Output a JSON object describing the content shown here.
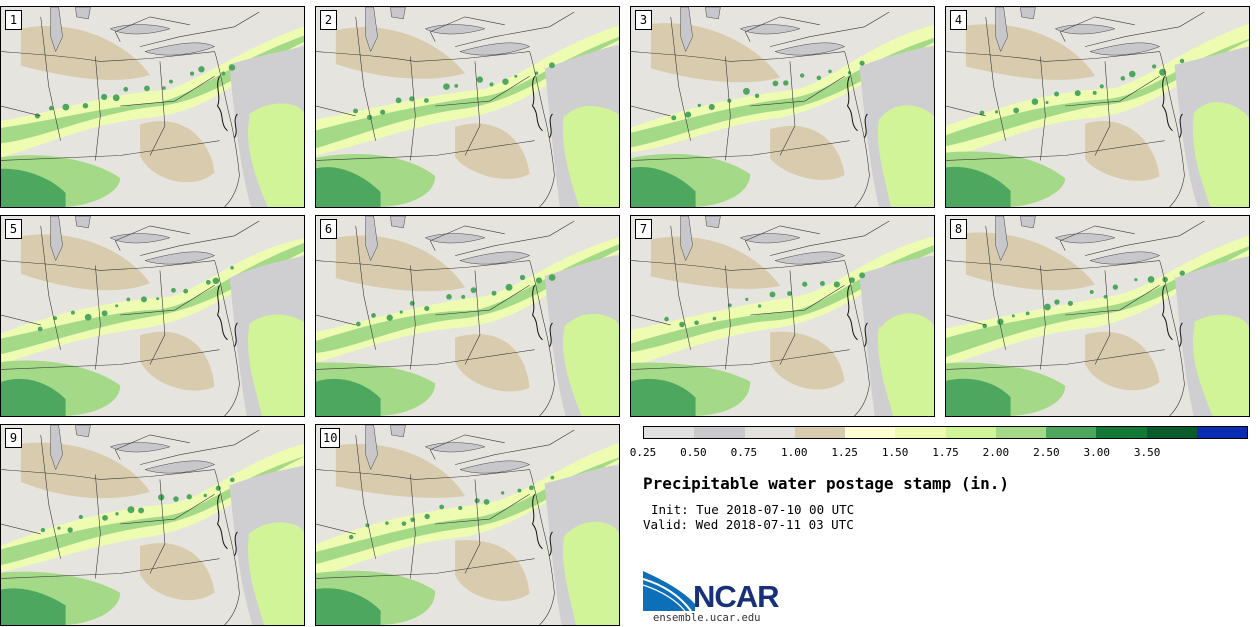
{
  "panels": [
    {
      "label": "1"
    },
    {
      "label": "2"
    },
    {
      "label": "3"
    },
    {
      "label": "4"
    },
    {
      "label": "5"
    },
    {
      "label": "6"
    },
    {
      "label": "7"
    },
    {
      "label": "8"
    },
    {
      "label": "9"
    },
    {
      "label": "10"
    }
  ],
  "colorbar": {
    "colors": [
      "#e0e0e0",
      "#c9c9cc",
      "#e4e2dc",
      "#d9ccae",
      "#ffffd2",
      "#eefcb2",
      "#d2f499",
      "#a3d987",
      "#4ea75e",
      "#127a36",
      "#085c2b",
      "#0a2cb0"
    ],
    "ticks": [
      "0.25",
      "0.50",
      "0.75",
      "1.00",
      "1.25",
      "1.50",
      "1.75",
      "2.00",
      "2.50",
      "3.00",
      "3.50"
    ]
  },
  "title": "Precipitable water postage stamp (in.)",
  "init_line": "Init: Tue 2018-07-10 00 UTC",
  "valid_line": "Valid: Wed 2018-07-11 03 UTC",
  "logo": {
    "name": "NCAR",
    "url": "ensemble.ucar.edu",
    "colors": {
      "swoosh": "#0d6fb8",
      "text": "#17307a"
    }
  },
  "map_legend_colors": {
    "lake": "#c8c8cc",
    "ocean_dry": "#c5c5c8",
    "very_moist": "#3f9a4e",
    "moist": "#8ecf7a"
  }
}
